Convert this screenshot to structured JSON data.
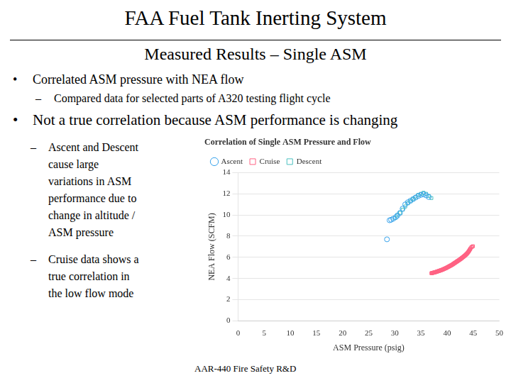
{
  "title": "FAA Fuel Tank Inerting System",
  "subtitle": "Measured Results – Single ASM",
  "bullet_symbol": "•",
  "dash_symbol": "–",
  "bullets": [
    {
      "text": "Correlated ASM pressure with NEA flow",
      "subs": [
        [
          "Compared data for selected parts of A320 testing flight cycle"
        ]
      ]
    },
    {
      "text": "Not a true correlation because ASM performance is changing",
      "subs": [
        [
          "Ascent and Descent",
          "cause large",
          "variations in ASM",
          "performance due to",
          "change in altitude /",
          "ASM pressure"
        ],
        [
          "Cruise data shows a",
          "true correlation in",
          "the low flow mode"
        ]
      ]
    }
  ],
  "footer": "AAR-440 Fire Safety R&D",
  "chart_data": {
    "type": "scatter",
    "title": "Correlation of Single ASM Pressure and Flow",
    "xlabel": "ASM Pressure (psig)",
    "ylabel": "NEA Flow (SCFM)",
    "xlim": [
      0,
      50
    ],
    "ylim": [
      0,
      14
    ],
    "xticks": [
      0,
      5,
      10,
      15,
      20,
      25,
      30,
      35,
      40,
      45,
      50
    ],
    "yticks": [
      0,
      2,
      4,
      6,
      8,
      10,
      12,
      14
    ],
    "grid": "y",
    "legend": "upper left",
    "series": [
      {
        "name": "Ascent",
        "marker": "circle",
        "x": [
          29.0,
          29.3,
          29.7,
          30.2,
          30.5,
          31.0,
          31.5,
          32.0,
          32.5,
          33.0,
          33.5,
          34.0,
          34.5,
          35.0,
          35.5,
          36.0,
          36.5,
          28.5
        ],
        "values": [
          9.5,
          9.55,
          9.65,
          9.8,
          9.95,
          10.2,
          10.6,
          11.0,
          11.2,
          11.35,
          11.5,
          11.65,
          11.8,
          11.9,
          11.95,
          11.85,
          11.7,
          7.7
        ]
      },
      {
        "name": "Cruise",
        "marker": "square",
        "x": [
          37.0,
          37.15,
          37.3,
          37.45,
          37.6,
          37.75,
          37.9,
          38.05,
          38.2,
          38.35,
          38.5,
          38.65,
          38.8,
          38.95,
          39.1,
          39.25,
          39.4,
          39.55,
          39.7,
          39.85,
          40.0,
          40.15,
          40.3,
          40.45,
          40.6,
          40.75,
          40.9,
          41.05,
          41.2,
          41.35,
          41.5,
          41.65,
          41.8,
          41.95,
          42.1,
          42.25,
          42.4,
          42.55,
          42.7,
          42.85,
          43.0,
          43.15,
          43.3,
          43.45,
          43.6,
          43.75,
          43.9,
          44.05,
          44.2,
          44.35,
          44.5,
          44.65,
          44.8,
          44.95,
          37.08,
          37.23,
          37.38,
          37.53,
          37.68,
          37.83,
          37.98,
          38.13,
          38.28,
          38.43,
          38.58,
          38.73,
          38.88,
          39.03,
          39.18,
          39.33,
          39.48,
          39.63,
          39.78,
          39.93,
          40.08,
          40.23,
          40.38,
          40.53,
          40.68,
          40.83,
          40.98,
          41.13,
          41.28,
          41.43,
          41.58,
          41.73,
          41.88,
          42.03,
          42.18,
          42.33,
          42.48,
          42.63,
          42.78,
          42.93,
          43.08,
          43.23,
          43.38,
          43.53,
          43.68,
          43.83,
          43.98,
          44.13,
          44.28,
          44.43
        ],
        "values": [
          4.5,
          4.52,
          4.54,
          4.56,
          4.58,
          4.6,
          4.62,
          4.65,
          4.67,
          4.7,
          4.72,
          4.75,
          4.78,
          4.8,
          4.83,
          4.86,
          4.9,
          4.93,
          4.96,
          5.0,
          5.04,
          5.08,
          5.12,
          5.16,
          5.2,
          5.24,
          5.28,
          5.33,
          5.38,
          5.43,
          5.48,
          5.53,
          5.58,
          5.63,
          5.68,
          5.73,
          5.78,
          5.83,
          5.88,
          5.94,
          6.0,
          6.06,
          6.12,
          6.18,
          6.25,
          6.32,
          6.4,
          6.5,
          6.6,
          6.72,
          6.85,
          6.95,
          7.0,
          7.05,
          4.51,
          4.53,
          4.55,
          4.57,
          4.59,
          4.61,
          4.64,
          4.66,
          4.69,
          4.71,
          4.74,
          4.77,
          4.79,
          4.82,
          4.85,
          4.88,
          4.92,
          4.95,
          4.98,
          5.02,
          5.06,
          5.1,
          5.14,
          5.18,
          5.22,
          5.26,
          5.3,
          5.35,
          5.4,
          5.45,
          5.5,
          5.55,
          5.6,
          5.65,
          5.7,
          5.75,
          5.8,
          5.86,
          5.92,
          5.97,
          6.03,
          6.09,
          6.15,
          6.22,
          6.29,
          6.36,
          6.45,
          6.55,
          6.66,
          6.78
        ]
      },
      {
        "name": "Descent",
        "marker": "square",
        "x": [
          30.0,
          30.5,
          31.0,
          31.5,
          32.0,
          32.5,
          33.0,
          33.5,
          34.0,
          34.5,
          35.0,
          35.5,
          36.0,
          36.5,
          37.0
        ],
        "values": [
          9.7,
          10.0,
          10.2,
          10.5,
          10.8,
          11.1,
          11.3,
          11.5,
          11.7,
          11.9,
          12.0,
          12.1,
          12.0,
          11.8,
          11.6
        ]
      }
    ]
  }
}
